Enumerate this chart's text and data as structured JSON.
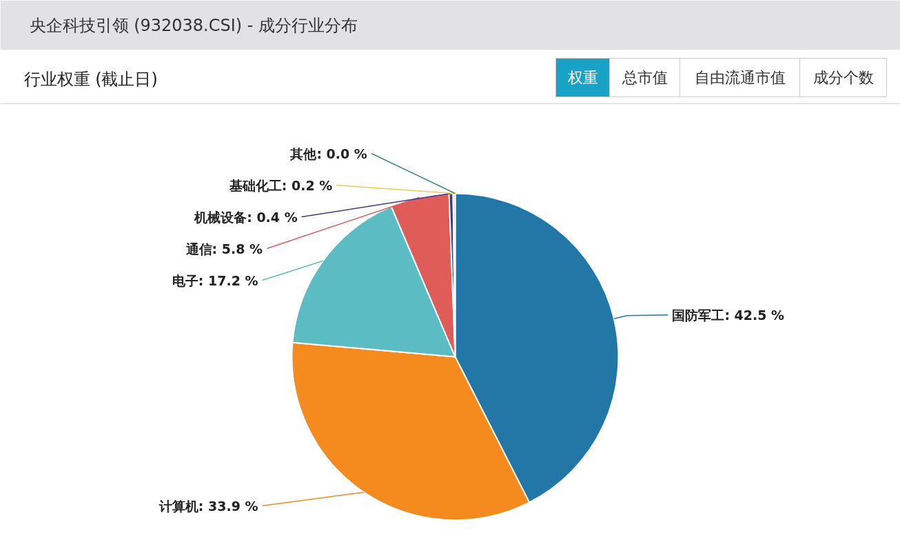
{
  "chart_data": {
    "type": "pie",
    "title": "央企科技引领 (932038.CSI) - 成分行业分布",
    "subtitle": "行业权重 (截止日)",
    "annotations": [
      "权重",
      "总市值",
      "自由流通市值",
      "成分个数"
    ],
    "categories": [
      "国防军工",
      "计算机",
      "电子",
      "通信",
      "机械设备",
      "基础化工",
      "其他"
    ],
    "values": [
      42.5,
      33.9,
      17.2,
      5.8,
      0.4,
      0.2,
      0.0
    ],
    "value_labels": [
      ": 42.5 %",
      ": 33.9 %",
      ": 17.2 %",
      ": 5.8 %",
      ": 0.4 %",
      ": 0.2 %",
      ": 0.0 %"
    ],
    "colors": [
      "#2277a6",
      "#f58a1e",
      "#5cbcc3",
      "#e05c59",
      "#3a3c8a",
      "#f2c94c",
      "#3d8b6e"
    ]
  }
}
